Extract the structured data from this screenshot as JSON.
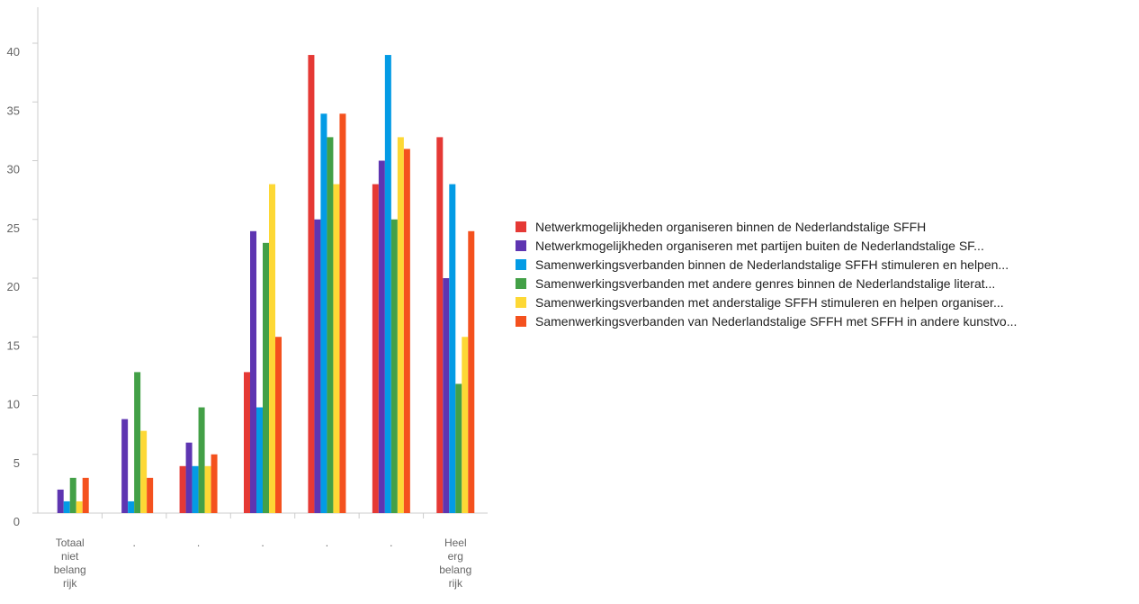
{
  "chart_data": {
    "type": "bar",
    "categories": [
      [
        "Totaal",
        "niet",
        "belang",
        "rijk"
      ],
      [
        "."
      ],
      [
        "."
      ],
      [
        "."
      ],
      [
        "."
      ],
      [
        "."
      ],
      [
        "Heel",
        "erg",
        "belang",
        "rijk"
      ]
    ],
    "series": [
      {
        "name": "Netwerkmogelijkheden organiseren binnen de Nederlandstalige SFFH",
        "color": "#e53935",
        "values": [
          0,
          0,
          4,
          12,
          39,
          28,
          32
        ]
      },
      {
        "name": "Netwerkmogelijkheden organiseren met partijen buiten de Nederlandstalige SF...",
        "color": "#5e35b1",
        "values": [
          2,
          8,
          6,
          24,
          25,
          30,
          20
        ]
      },
      {
        "name": "Samenwerkingsverbanden binnen de Nederlandstalige SFFH stimuleren en helpen...",
        "color": "#039be5",
        "values": [
          1,
          1,
          4,
          9,
          34,
          39,
          28
        ]
      },
      {
        "name": "Samenwerkingsverbanden met andere genres binnen de Nederlandstalige literat...",
        "color": "#43a047",
        "values": [
          3,
          12,
          9,
          23,
          32,
          25,
          11
        ]
      },
      {
        "name": "Samenwerkingsverbanden met anderstalige SFFH stimuleren en helpen organiser...",
        "color": "#fdd835",
        "values": [
          1,
          7,
          4,
          28,
          28,
          32,
          15
        ]
      },
      {
        "name": "Samenwerkingsverbanden van Nederlandstalige SFFH met SFFH in andere kunstvo...",
        "color": "#f4511e",
        "values": [
          3,
          3,
          5,
          15,
          34,
          31,
          24
        ]
      }
    ],
    "yticks": [
      "0",
      "5",
      "10",
      "15",
      "20",
      "25",
      "30",
      "35",
      "40"
    ],
    "ylim": [
      0,
      40
    ],
    "legend_position": "right"
  }
}
